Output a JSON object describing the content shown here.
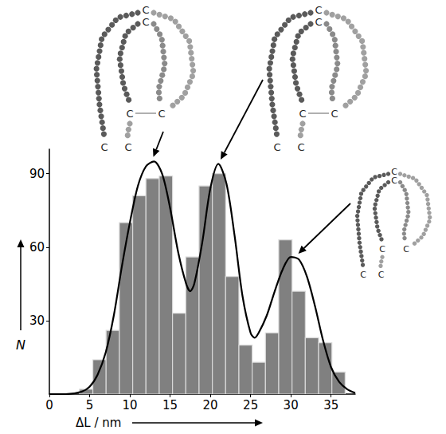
{
  "chart_data": {
    "type": "histogram",
    "bins": [
      3.75,
      5.4,
      7.05,
      8.7,
      10.35,
      12,
      13.65,
      15.3,
      16.95,
      18.6,
      20.25,
      21.9,
      23.55,
      25.2,
      26.85,
      28.5,
      30.15,
      31.8,
      33.45,
      35.1,
      36.75
    ],
    "counts": [
      2,
      14,
      26,
      70,
      81,
      88,
      89,
      33,
      56,
      85,
      90,
      48,
      20,
      13,
      25,
      63,
      42,
      23,
      21,
      9
    ],
    "color": "#808080",
    "fit_curve": {
      "type": "line",
      "color": "#000000",
      "x": [
        0,
        2,
        4,
        5,
        6,
        7,
        8,
        9,
        10,
        11,
        12,
        13,
        14,
        15,
        16,
        17,
        17.5,
        18,
        19,
        20,
        21,
        22,
        23,
        24,
        25,
        25.5,
        26,
        27,
        28,
        29,
        30,
        31,
        32,
        33,
        34,
        35,
        36,
        37,
        38
      ],
      "values": [
        0,
        0,
        1,
        3,
        8,
        17,
        32,
        52,
        70,
        85,
        93,
        95,
        90,
        76,
        58,
        45,
        42,
        45,
        62,
        84,
        94,
        86,
        65,
        40,
        25,
        23,
        25,
        32,
        42,
        51,
        56,
        55,
        48,
        36,
        22,
        11,
        5,
        2,
        0.5
      ]
    },
    "x_label": "ΔL / nm",
    "y_label": "N",
    "xlim": [
      0,
      38
    ],
    "xticks": [
      0,
      5,
      10,
      15,
      20,
      25,
      30,
      35
    ],
    "ylim": [
      0,
      100
    ],
    "yticks": [
      30,
      60,
      90
    ],
    "grid": false,
    "annotations": [
      {
        "labels": [
          "C",
          "C",
          "C",
          "C",
          "C",
          "C"
        ],
        "x": 12.7,
        "y": 95
      },
      {
        "labels": [
          "C",
          "C",
          "C",
          "C",
          "C",
          "C"
        ],
        "x": 21,
        "y": 94
      },
      {
        "labels": [
          "C",
          "C",
          "C",
          "C",
          "C",
          "C"
        ],
        "x": 30.5,
        "y": 56
      }
    ]
  }
}
